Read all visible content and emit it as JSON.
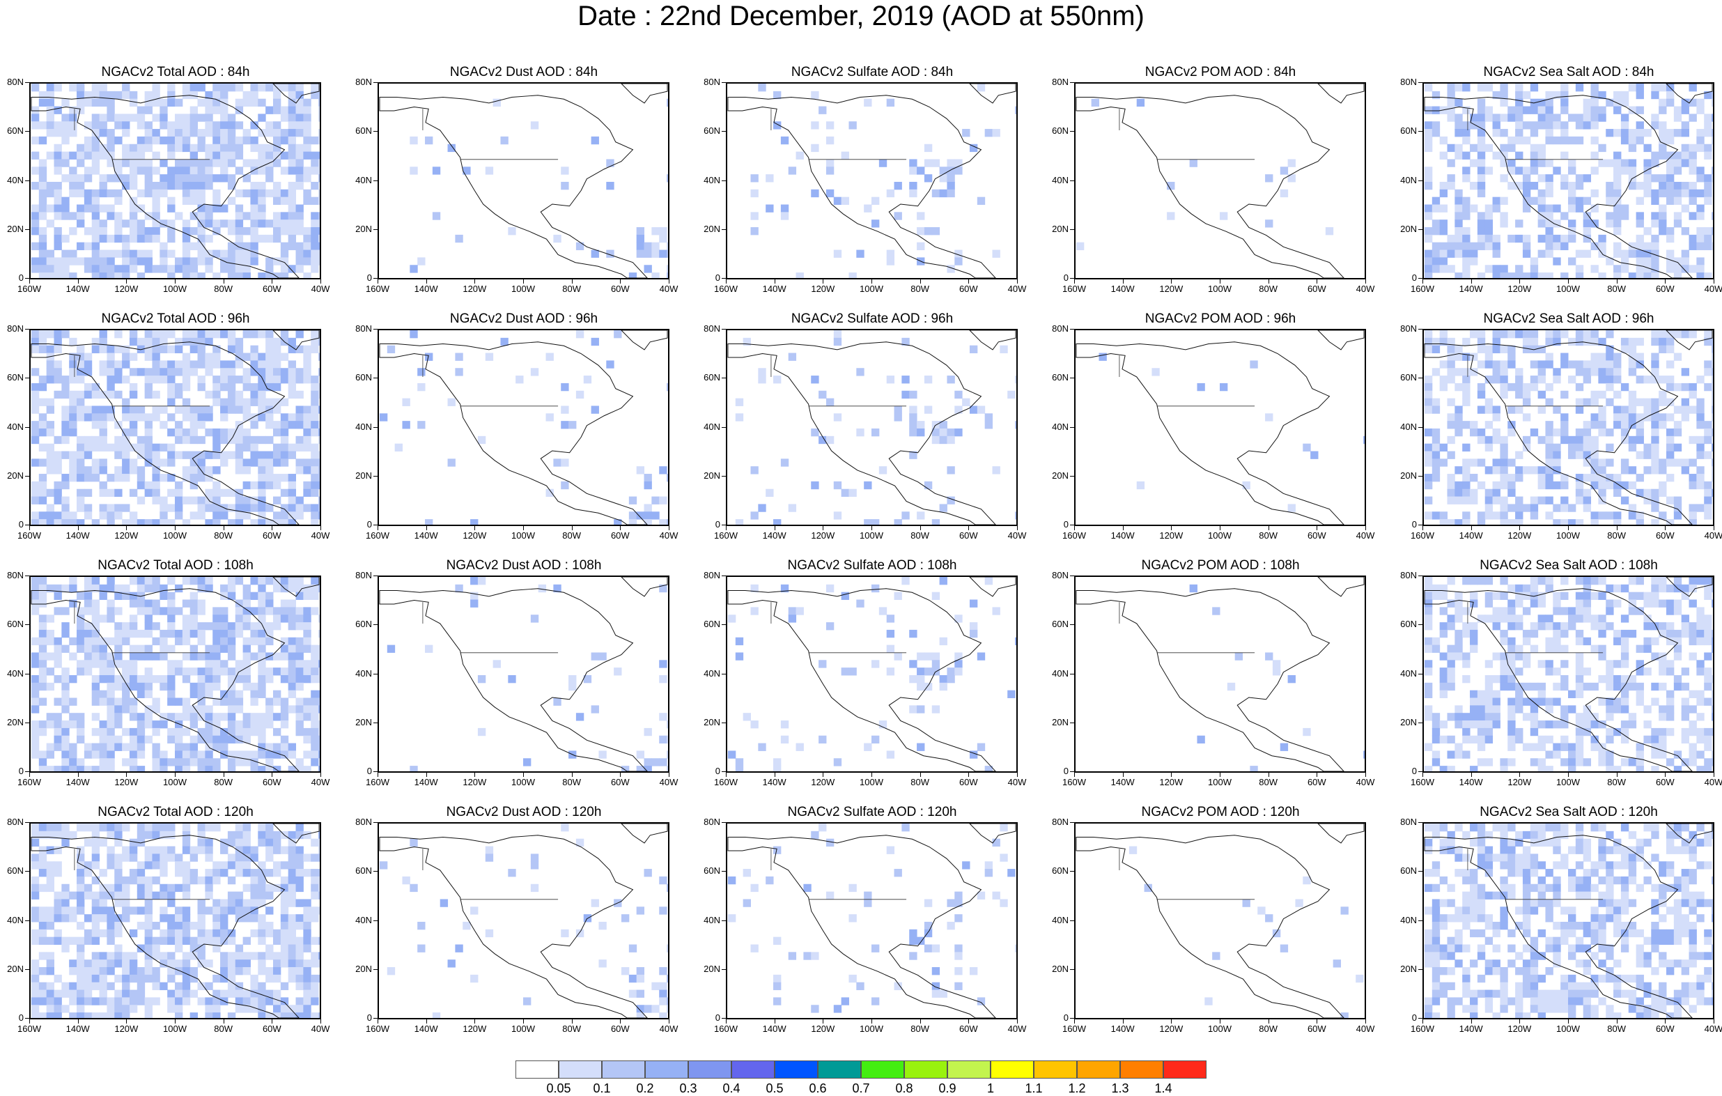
{
  "title": "Date : 22nd December, 2019 (AOD at 550nm)",
  "lat_labels": [
    "80N",
    "60N",
    "40N",
    "20N",
    "0"
  ],
  "lon_labels": [
    "160W",
    "140W",
    "120W",
    "100W",
    "80W",
    "60W",
    "40W"
  ],
  "columns": [
    {
      "species": "total",
      "intensity": 0.9
    },
    {
      "species": "dust",
      "intensity": 0.15
    },
    {
      "species": "sulfate",
      "intensity": 0.3
    },
    {
      "species": "pom",
      "intensity": 0.05
    },
    {
      "species": "seasalt",
      "intensity": 0.7
    }
  ],
  "panel_titles": [
    [
      "NGACv2 Total AOD : 84h",
      "NGACv2 Dust AOD : 84h",
      "NGACv2 Sulfate AOD : 84h",
      "NGACv2 POM AOD : 84h",
      "NGACv2 Sea Salt AOD : 84h"
    ],
    [
      "NGACv2 Total AOD : 96h",
      "NGACv2 Dust AOD : 96h",
      "NGACv2 Sulfate AOD : 96h",
      "NGACv2 POM AOD : 96h",
      "NGACv2 Sea Salt AOD : 96h"
    ],
    [
      "NGACv2 Total AOD : 108h",
      "NGACv2 Dust AOD : 108h",
      "NGACv2 Sulfate AOD : 108h",
      "NGACv2 POM AOD : 108h",
      "NGACv2 Sea Salt AOD : 108h"
    ],
    [
      "NGACv2 Total AOD : 120h",
      "NGACv2 Dust AOD : 120h",
      "NGACv2 Sulfate AOD : 120h",
      "NGACv2 POM AOD : 120h",
      "NGACv2 Sea Salt  AOD : 120h"
    ]
  ],
  "colorbar": {
    "colors": [
      "#ffffff",
      "#d4defa",
      "#b4c6f6",
      "#96b1f5",
      "#7f96f0",
      "#6366ed",
      "#0055ff",
      "#009a96",
      "#44ee11",
      "#99f20e",
      "#c3f44e",
      "#ffff00",
      "#ffc400",
      "#ffa500",
      "#ff7f00",
      "#ff2a1a"
    ],
    "labels": [
      "0.05",
      "0.1",
      "0.2",
      "0.3",
      "0.4",
      "0.5",
      "0.6",
      "0.7",
      "0.8",
      "0.9",
      "1",
      "1.1",
      "1.2",
      "1.3",
      "1.4"
    ]
  }
}
